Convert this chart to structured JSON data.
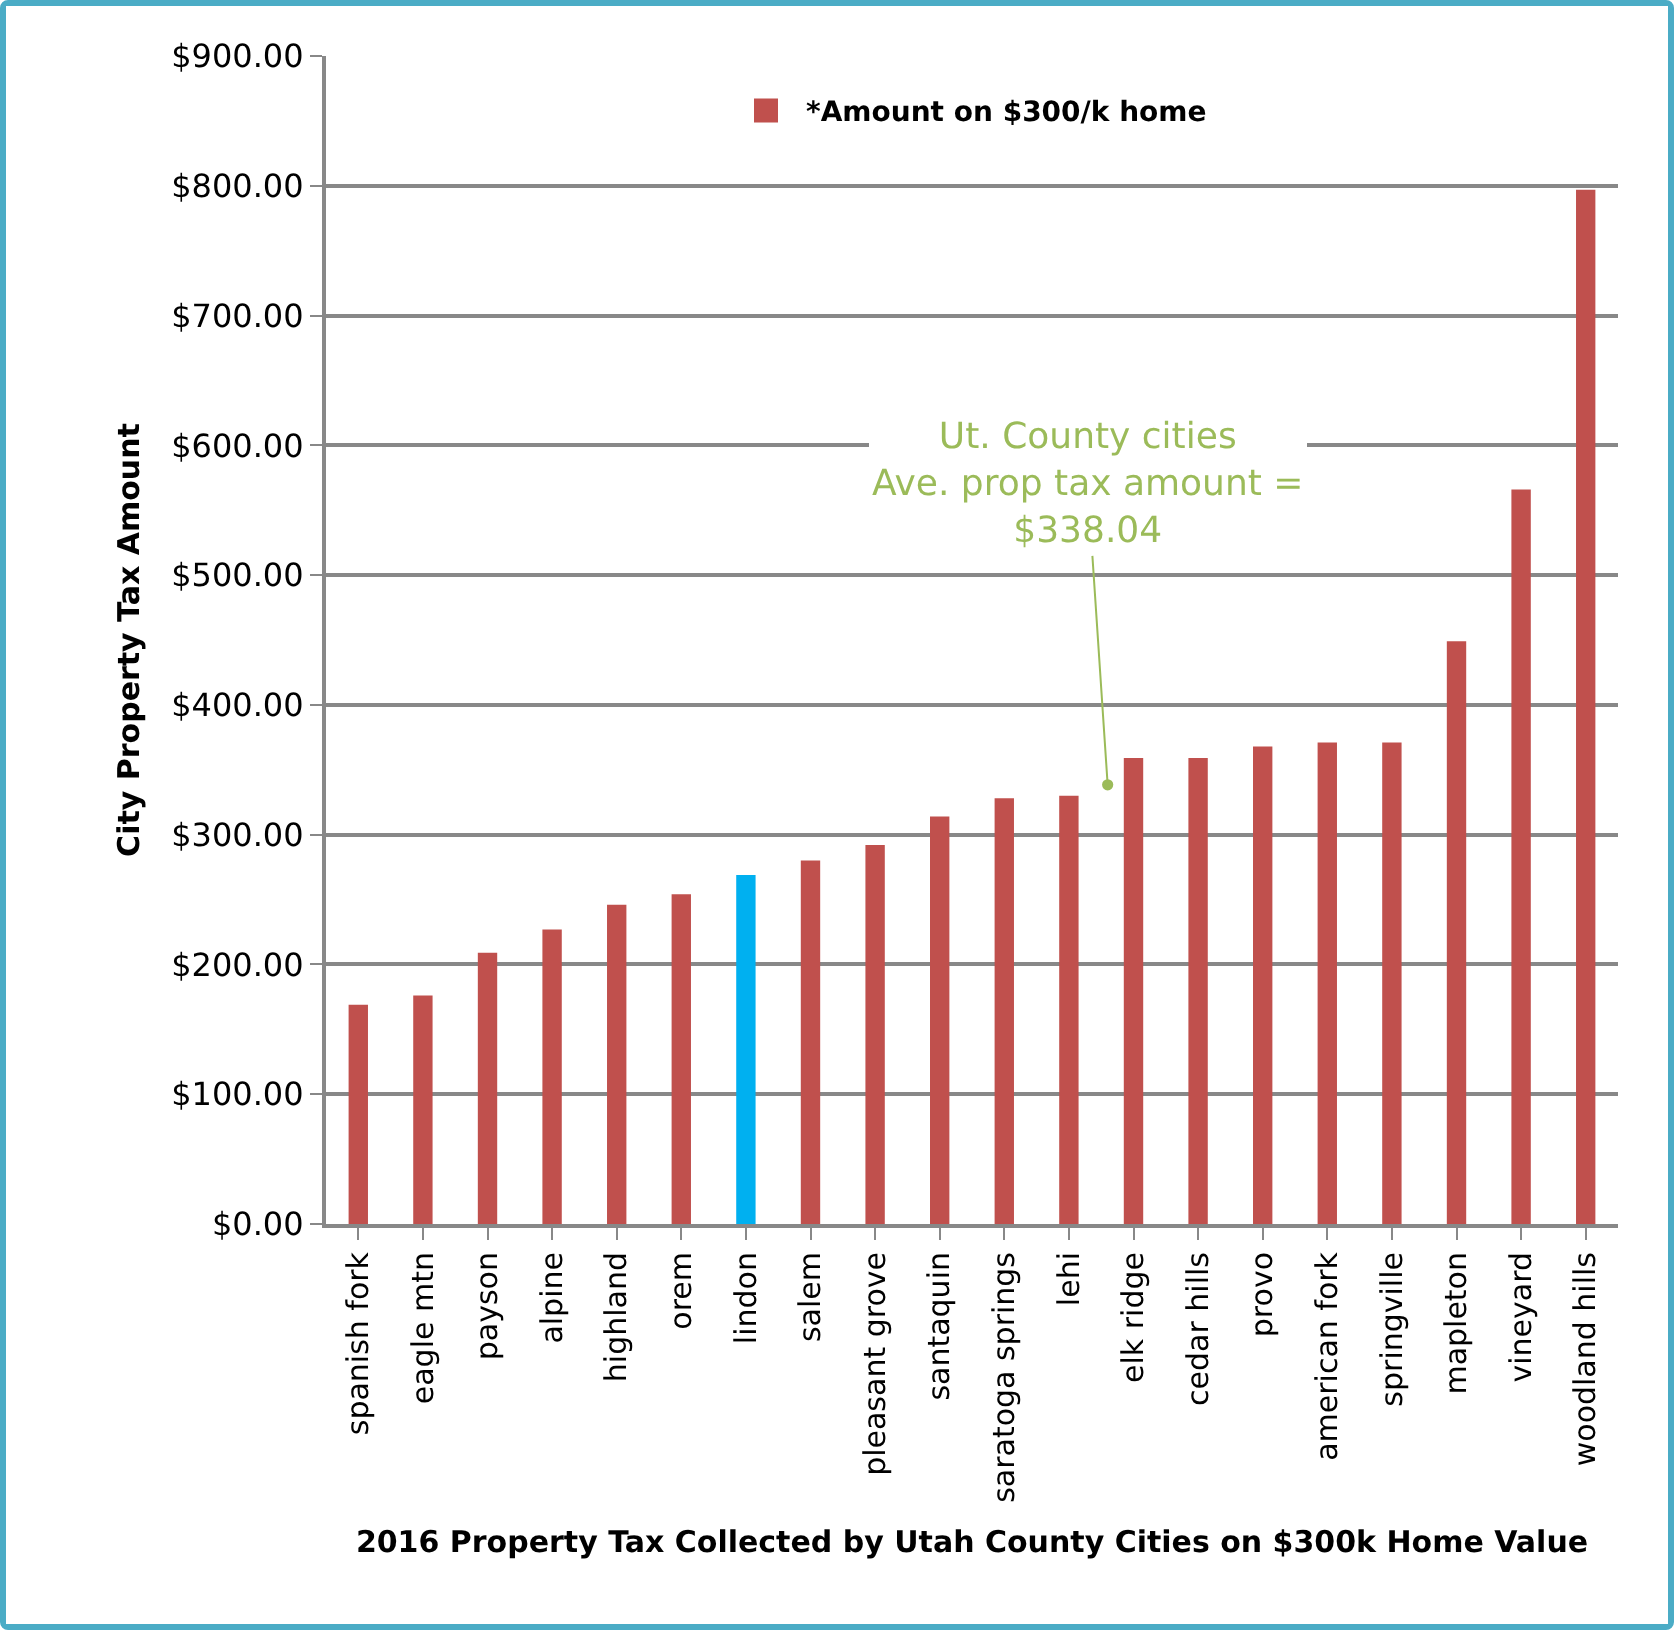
{
  "chart_data": {
    "type": "bar",
    "xlabel": "2016 Property Tax Collected by Utah County Cities on $300k Home Value",
    "ylabel": "City Property Tax Amount",
    "categories": [
      "spanish fork",
      "eagle mtn",
      "payson",
      "alpine",
      "highland",
      "orem",
      "lindon",
      "salem",
      "pleasant grove",
      "santaquin",
      "saratoga springs",
      "lehi",
      "elk ridge",
      "cedar hills",
      "provo",
      "american fork",
      "springville",
      "mapleton",
      "vineyard",
      "woodland hills"
    ],
    "series": [
      {
        "name": "*Amount on $300/k home",
        "color": "#c0504d",
        "values": [
          169,
          176,
          209,
          227,
          246,
          254,
          269,
          280,
          292,
          314,
          328,
          330,
          359,
          359,
          368,
          371,
          371,
          449,
          566,
          797
        ],
        "colors": [
          null,
          null,
          null,
          null,
          null,
          null,
          "#00b0f0",
          null,
          null,
          null,
          null,
          null,
          null,
          null,
          null,
          null,
          null,
          null,
          null,
          null
        ]
      }
    ],
    "ylim": [
      0,
      900
    ],
    "yticks": [
      {
        "value": 0,
        "label": "$0.00"
      },
      {
        "value": 100,
        "label": "$100.00"
      },
      {
        "value": 200,
        "label": "$200.00"
      },
      {
        "value": 300,
        "label": "$300.00"
      },
      {
        "value": 400,
        "label": "$400.00"
      },
      {
        "value": 500,
        "label": "$500.00"
      },
      {
        "value": 600,
        "label": "$600.00"
      },
      {
        "value": 700,
        "label": "$700.00"
      },
      {
        "value": 800,
        "label": "$800.00"
      },
      {
        "value": 900,
        "label": "$900.00"
      }
    ],
    "grid": "y",
    "legend": "top",
    "annotations": [
      "Ut. County cities\nAve. prop tax amount =\n$338.04"
    ]
  }
}
